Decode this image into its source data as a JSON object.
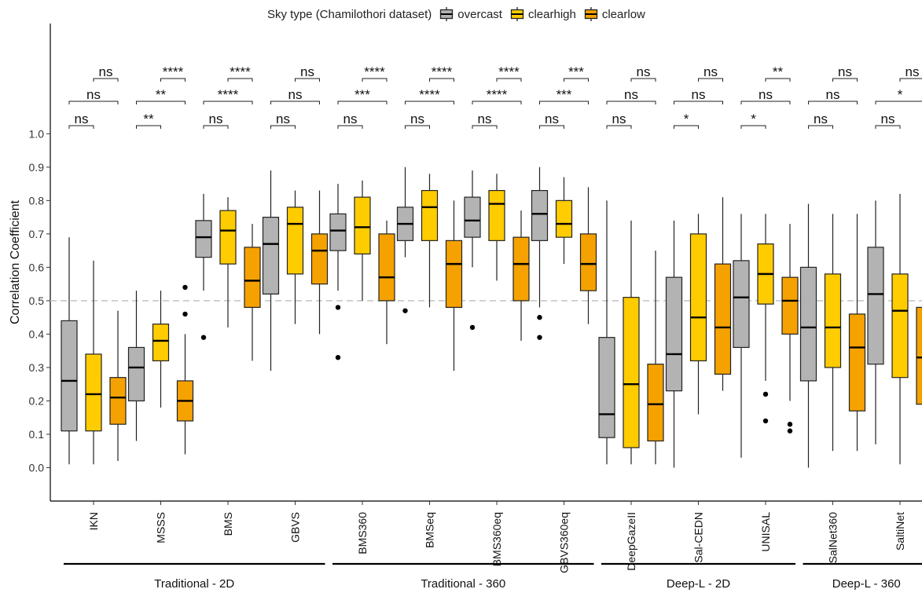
{
  "chart_data": {
    "type": "box",
    "ylabel": "Correlation Coefficient",
    "ylim": [
      -0.1,
      1.33
    ],
    "yticks": [
      "0.0",
      "0.1",
      "0.2",
      "0.3",
      "0.4",
      "0.5",
      "0.6",
      "0.7",
      "0.8",
      "0.9",
      "1.0"
    ],
    "reference_line": 0.5,
    "legend": {
      "title": "Sky type (Chamilothori dataset)",
      "position": "top",
      "entries": [
        {
          "name": "overcast",
          "color": "#b3b3b3"
        },
        {
          "name": "clearhigh",
          "color": "#ffcc00"
        },
        {
          "name": "clearlow",
          "color": "#f5a200"
        }
      ]
    },
    "categories": [
      "IKN",
      "MSSS",
      "BMS",
      "GBVS",
      "BMS360",
      "BMSeq",
      "BMS360eq",
      "GBVS360eq",
      "DeepGazeII",
      "Sal-CEDN",
      "UNISAL",
      "SalNet360",
      "SaltiNet"
    ],
    "groups": [
      {
        "label": "Traditional - 2D",
        "members": [
          "IKN",
          "MSSS",
          "BMS",
          "GBVS"
        ]
      },
      {
        "label": "Traditional - 360",
        "members": [
          "BMS360",
          "BMSeq",
          "BMS360eq",
          "GBVS360eq"
        ]
      },
      {
        "label": "Deep-L - 2D",
        "members": [
          "DeepGazeII",
          "Sal-CEDN",
          "UNISAL"
        ]
      },
      {
        "label": "Deep-L - 360",
        "members": [
          "SalNet360",
          "SaltiNet"
        ]
      }
    ],
    "series": [
      {
        "name": "overcast",
        "boxes": [
          {
            "min": 0.01,
            "q1": 0.11,
            "median": 0.26,
            "q3": 0.44,
            "max": 0.69,
            "outliers": []
          },
          {
            "min": 0.08,
            "q1": 0.2,
            "median": 0.3,
            "q3": 0.36,
            "max": 0.53,
            "outliers": []
          },
          {
            "min": 0.53,
            "q1": 0.63,
            "median": 0.69,
            "q3": 0.74,
            "max": 0.82,
            "outliers": [
              0.39
            ]
          },
          {
            "min": 0.29,
            "q1": 0.52,
            "median": 0.67,
            "q3": 0.75,
            "max": 0.89,
            "outliers": []
          },
          {
            "min": 0.53,
            "q1": 0.65,
            "median": 0.71,
            "q3": 0.76,
            "max": 0.85,
            "outliers": [
              0.48,
              0.33
            ]
          },
          {
            "min": 0.63,
            "q1": 0.68,
            "median": 0.73,
            "q3": 0.78,
            "max": 0.9,
            "outliers": [
              0.47
            ]
          },
          {
            "min": 0.6,
            "q1": 0.69,
            "median": 0.74,
            "q3": 0.81,
            "max": 0.89,
            "outliers": [
              0.42
            ]
          },
          {
            "min": 0.48,
            "q1": 0.68,
            "median": 0.76,
            "q3": 0.83,
            "max": 0.9,
            "outliers": [
              0.45,
              0.39
            ]
          },
          {
            "min": 0.01,
            "q1": 0.09,
            "median": 0.16,
            "q3": 0.39,
            "max": 0.8,
            "outliers": []
          },
          {
            "min": 0.0,
            "q1": 0.23,
            "median": 0.34,
            "q3": 0.57,
            "max": 0.74,
            "outliers": []
          },
          {
            "min": 0.03,
            "q1": 0.36,
            "median": 0.51,
            "q3": 0.62,
            "max": 0.76,
            "outliers": []
          },
          {
            "min": 0.0,
            "q1": 0.26,
            "median": 0.42,
            "q3": 0.6,
            "max": 0.79,
            "outliers": []
          },
          {
            "min": 0.07,
            "q1": 0.31,
            "median": 0.52,
            "q3": 0.66,
            "max": 0.8,
            "outliers": []
          }
        ]
      },
      {
        "name": "clearhigh",
        "boxes": [
          {
            "min": 0.01,
            "q1": 0.11,
            "median": 0.22,
            "q3": 0.34,
            "max": 0.62,
            "outliers": []
          },
          {
            "min": 0.18,
            "q1": 0.32,
            "median": 0.38,
            "q3": 0.43,
            "max": 0.53,
            "outliers": []
          },
          {
            "min": 0.42,
            "q1": 0.61,
            "median": 0.71,
            "q3": 0.77,
            "max": 0.81,
            "outliers": []
          },
          {
            "min": 0.43,
            "q1": 0.58,
            "median": 0.73,
            "q3": 0.78,
            "max": 0.83,
            "outliers": []
          },
          {
            "min": 0.5,
            "q1": 0.64,
            "median": 0.72,
            "q3": 0.81,
            "max": 0.86,
            "outliers": []
          },
          {
            "min": 0.48,
            "q1": 0.68,
            "median": 0.78,
            "q3": 0.83,
            "max": 0.88,
            "outliers": []
          },
          {
            "min": 0.56,
            "q1": 0.68,
            "median": 0.79,
            "q3": 0.83,
            "max": 0.88,
            "outliers": []
          },
          {
            "min": 0.61,
            "q1": 0.69,
            "median": 0.73,
            "q3": 0.8,
            "max": 0.87,
            "outliers": []
          },
          {
            "min": 0.01,
            "q1": 0.06,
            "median": 0.25,
            "q3": 0.51,
            "max": 0.74,
            "outliers": []
          },
          {
            "min": 0.16,
            "q1": 0.32,
            "median": 0.45,
            "q3": 0.7,
            "max": 0.76,
            "outliers": []
          },
          {
            "min": 0.26,
            "q1": 0.49,
            "median": 0.58,
            "q3": 0.67,
            "max": 0.76,
            "outliers": [
              0.22,
              0.14
            ]
          },
          {
            "min": 0.05,
            "q1": 0.3,
            "median": 0.42,
            "q3": 0.58,
            "max": 0.76,
            "outliers": []
          },
          {
            "min": 0.01,
            "q1": 0.27,
            "median": 0.47,
            "q3": 0.58,
            "max": 0.82,
            "outliers": []
          }
        ]
      },
      {
        "name": "clearlow",
        "boxes": [
          {
            "min": 0.02,
            "q1": 0.13,
            "median": 0.21,
            "q3": 0.27,
            "max": 0.47,
            "outliers": []
          },
          {
            "min": 0.04,
            "q1": 0.14,
            "median": 0.2,
            "q3": 0.26,
            "max": 0.4,
            "outliers": [
              0.54,
              0.46
            ]
          },
          {
            "min": 0.32,
            "q1": 0.48,
            "median": 0.56,
            "q3": 0.66,
            "max": 0.73,
            "outliers": []
          },
          {
            "min": 0.4,
            "q1": 0.55,
            "median": 0.65,
            "q3": 0.7,
            "max": 0.83,
            "outliers": []
          },
          {
            "min": 0.37,
            "q1": 0.5,
            "median": 0.57,
            "q3": 0.7,
            "max": 0.74,
            "outliers": []
          },
          {
            "min": 0.29,
            "q1": 0.48,
            "median": 0.61,
            "q3": 0.68,
            "max": 0.8,
            "outliers": []
          },
          {
            "min": 0.38,
            "q1": 0.5,
            "median": 0.61,
            "q3": 0.69,
            "max": 0.77,
            "outliers": []
          },
          {
            "min": 0.43,
            "q1": 0.53,
            "median": 0.61,
            "q3": 0.7,
            "max": 0.84,
            "outliers": []
          },
          {
            "min": 0.01,
            "q1": 0.08,
            "median": 0.19,
            "q3": 0.31,
            "max": 0.65,
            "outliers": []
          },
          {
            "min": 0.23,
            "q1": 0.28,
            "median": 0.42,
            "q3": 0.61,
            "max": 0.81,
            "outliers": []
          },
          {
            "min": 0.2,
            "q1": 0.4,
            "median": 0.5,
            "q3": 0.57,
            "max": 0.73,
            "outliers": [
              0.13,
              0.11
            ]
          },
          {
            "min": 0.05,
            "q1": 0.17,
            "median": 0.36,
            "q3": 0.46,
            "max": 0.76,
            "outliers": []
          },
          {
            "min": 0.02,
            "q1": 0.19,
            "median": 0.33,
            "q3": 0.48,
            "max": 0.7,
            "outliers": []
          }
        ]
      }
    ],
    "significance": [
      [
        "ns",
        "ns",
        "ns"
      ],
      [
        "**",
        "**",
        "****"
      ],
      [
        "ns",
        "****",
        "****"
      ],
      [
        "ns",
        "ns",
        "ns"
      ],
      [
        "ns",
        "***",
        "****"
      ],
      [
        "ns",
        "****",
        "****"
      ],
      [
        "ns",
        "****",
        "****"
      ],
      [
        "ns",
        "***",
        "***"
      ],
      [
        "ns",
        "ns",
        "ns"
      ],
      [
        "*",
        "ns",
        "ns"
      ],
      [
        "*",
        "ns",
        "**"
      ],
      [
        "ns",
        "ns",
        "ns"
      ],
      [
        "ns",
        "*",
        "ns"
      ]
    ]
  }
}
